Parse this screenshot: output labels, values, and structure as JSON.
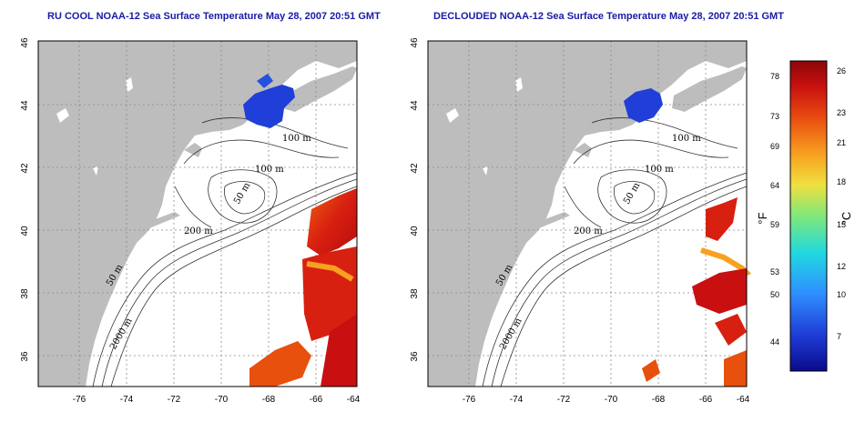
{
  "panels": [
    {
      "title": "RU COOL NOAA-12 Sea Surface Temperature May 28, 2007 20:51 GMT",
      "x_ticks": [
        "-76",
        "-74",
        "-72",
        "-70",
        "-68",
        "-66",
        "-64"
      ],
      "y_ticks": [
        "46",
        "44",
        "42",
        "40",
        "38",
        "36"
      ],
      "contour_labels": [
        "100 m",
        "100 m",
        "50 m",
        "200 m",
        "50 m",
        "2000 m"
      ]
    },
    {
      "title": "DECLOUDED NOAA-12 Sea Surface Temperature May 28, 2007 20:51 GMT",
      "x_ticks": [
        "-76",
        "-74",
        "-72",
        "-70",
        "-68",
        "-66",
        "-64"
      ],
      "y_ticks": [
        "46",
        "44",
        "42",
        "40",
        "38",
        "36"
      ],
      "contour_labels": [
        "100 m",
        "100 m",
        "50 m",
        "200 m",
        "50 m",
        "2000 m"
      ]
    }
  ],
  "colorbar": {
    "fahrenheit_ticks": [
      "78",
      "73",
      "69",
      "64",
      "59",
      "53",
      "50",
      "44"
    ],
    "celsius_ticks": [
      "26",
      "23",
      "21",
      "18",
      "15",
      "12",
      "10",
      "7"
    ],
    "unit_f": "°F",
    "unit_c": "°C",
    "colors": [
      "#0a0a8c",
      "#1f3fd8",
      "#2f8fff",
      "#20d8e0",
      "#7fe87a",
      "#f0e040",
      "#f8a020",
      "#e84a10",
      "#c81010",
      "#8c0808"
    ]
  },
  "colors": {
    "land": "#bdbdbd",
    "ocean": "#ffffff",
    "title": "#1a1aa8"
  }
}
